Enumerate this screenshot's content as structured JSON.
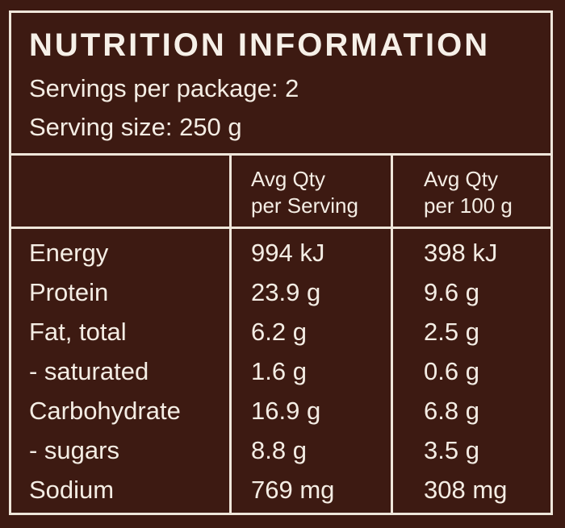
{
  "label": {
    "title": "NUTRITION INFORMATION",
    "servings_per_package": "Servings per package: 2",
    "serving_size": "Serving size: 250 g",
    "column_headers": {
      "per_serving": [
        "Avg Qty",
        "per Serving"
      ],
      "per_100g": [
        "Avg Qty",
        "per 100 g"
      ]
    },
    "rows": [
      {
        "name": "Energy",
        "per_serving": "994 kJ",
        "per_100g": "398 kJ"
      },
      {
        "name": "Protein",
        "per_serving": "23.9 g",
        "per_100g": "9.6 g"
      },
      {
        "name": "Fat, total",
        "per_serving": "6.2 g",
        "per_100g": "2.5 g"
      },
      {
        "name": "- saturated",
        "per_serving": "1.6 g",
        "per_100g": "0.6 g"
      },
      {
        "name": "Carbohydrate",
        "per_serving": "16.9 g",
        "per_100g": "6.8 g"
      },
      {
        "name": "- sugars",
        "per_serving": "8.8 g",
        "per_100g": "3.5 g"
      },
      {
        "name": "Sodium",
        "per_serving": "769 mg",
        "per_100g": "308 mg"
      }
    ]
  },
  "colors": {
    "background": "#3d1a12",
    "lines": "#efe6da",
    "text": "#f4ede4"
  }
}
